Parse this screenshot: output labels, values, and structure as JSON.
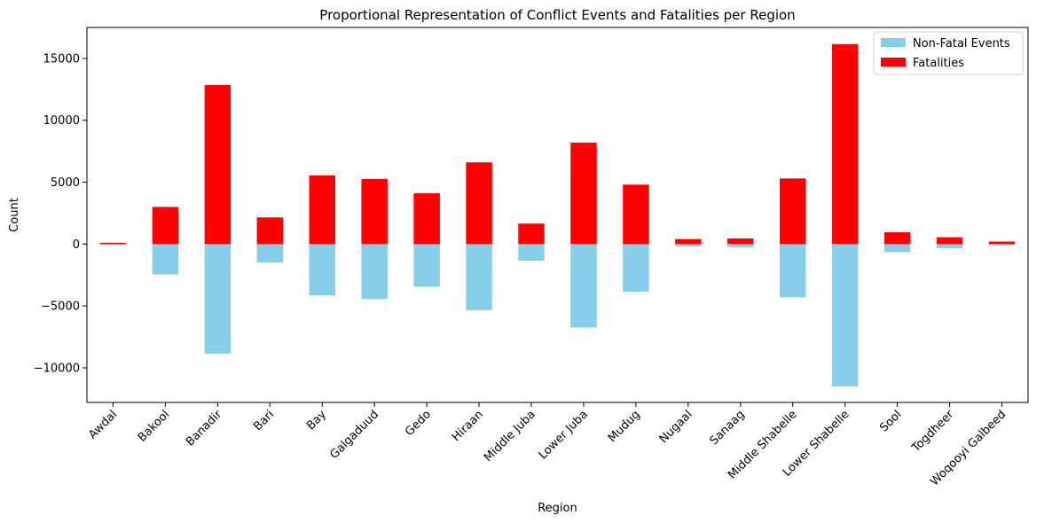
{
  "chart_data": {
    "type": "bar",
    "stacked": true,
    "title": "Proportional Representation of Conflict Events and Fatalities per Region",
    "xlabel": "Region",
    "ylabel": "Count",
    "ylim": [
      -12800,
      17500
    ],
    "yticks": [
      -10000,
      -5000,
      0,
      5000,
      10000,
      15000
    ],
    "grid": false,
    "legend_position": "top-right",
    "categories": [
      "Awdal",
      "Bakool",
      "Banadir",
      "Bari",
      "Bay",
      "Galgaduud",
      "Gedo",
      "Hiraan",
      "Middle Juba",
      "Lower Juba",
      "Mudug",
      "Nugaal",
      "Sanaag",
      "Middle Shabelle",
      "Lower Shabelle",
      "Sool",
      "Togdheer",
      "Woqooyi Galbeed"
    ],
    "series": [
      {
        "name": "Non-Fatal Events",
        "color": "#87ceeb",
        "values": [
          -60,
          -2450,
          -8850,
          -1500,
          -4150,
          -4450,
          -3450,
          -5350,
          -1350,
          -6750,
          -3850,
          -200,
          -250,
          -4300,
          -11500,
          -650,
          -350,
          -100
        ]
      },
      {
        "name": "Fatalities",
        "color": "#ff0000",
        "values": [
          100,
          3000,
          12850,
          2150,
          5550,
          5250,
          4100,
          6600,
          1650,
          8200,
          4800,
          400,
          450,
          5300,
          16150,
          950,
          550,
          200
        ]
      }
    ]
  }
}
